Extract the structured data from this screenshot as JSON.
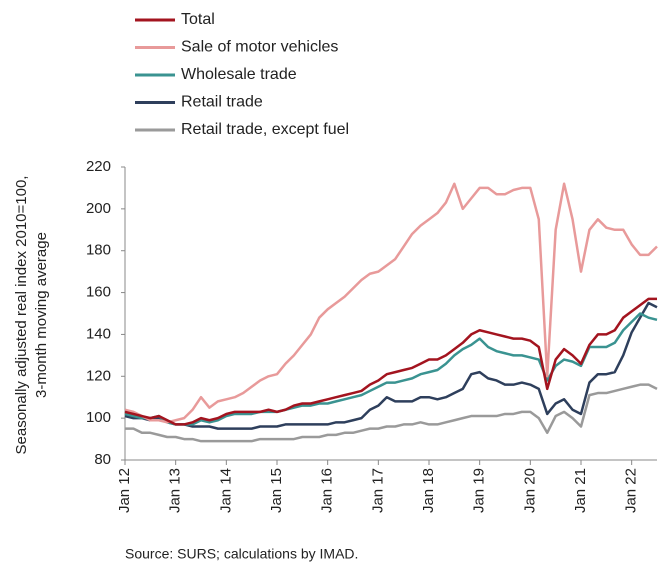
{
  "chart_data": {
    "type": "line",
    "y_label": [
      "Seasonally adjusted real index 2010=100,",
      "3-month moving average"
    ],
    "source": "Source: SURS; calculations by IMAD.",
    "categories": [
      "Jan 12",
      null,
      null,
      null,
      null,
      null,
      "Jan 13",
      null,
      null,
      null,
      null,
      null,
      "Jan 14",
      null,
      null,
      null,
      null,
      null,
      "Jan 15",
      null,
      null,
      null,
      null,
      null,
      "Jan 16",
      null,
      null,
      null,
      null,
      null,
      "Jan 17",
      null,
      null,
      null,
      null,
      null,
      "Jan 18",
      null,
      null,
      null,
      null,
      null,
      "Jan 19",
      null,
      null,
      null,
      null,
      null,
      "Jan 20",
      null,
      null,
      null,
      null,
      null,
      "Jan 21",
      null,
      null,
      null,
      null,
      null,
      "Jan 22",
      null,
      null,
      null
    ],
    "series": [
      {
        "name": "Total",
        "color": "#a3141f",
        "values": [
          103,
          102,
          101,
          100,
          101,
          99,
          97,
          97,
          98,
          100,
          99,
          100,
          102,
          103,
          103,
          103,
          103,
          104,
          103,
          104,
          106,
          107,
          107,
          108,
          109,
          110,
          111,
          112,
          113,
          116,
          118,
          121,
          122,
          123,
          124,
          126,
          128,
          128,
          130,
          133,
          136,
          140,
          142,
          141,
          140,
          139,
          138,
          138,
          137,
          134,
          114,
          128,
          133,
          130,
          126,
          135,
          140,
          140,
          142,
          148,
          151,
          154,
          157,
          157
        ]
      },
      {
        "name": "Sale of motor vehicles",
        "color": "#e89a9a",
        "values": [
          104,
          103,
          101,
          99,
          99,
          98,
          99,
          100,
          104,
          110,
          105,
          108,
          109,
          110,
          112,
          115,
          118,
          120,
          121,
          126,
          130,
          135,
          140,
          148,
          152,
          155,
          158,
          162,
          166,
          169,
          170,
          173,
          176,
          182,
          188,
          192,
          195,
          198,
          203,
          212,
          200,
          205,
          210,
          210,
          207,
          207,
          209,
          210,
          210,
          195,
          120,
          190,
          212,
          195,
          170,
          190,
          195,
          191,
          190,
          190,
          183,
          178,
          178,
          182
        ]
      },
      {
        "name": "Wholesale trade",
        "color": "#3a9391",
        "values": [
          102,
          101,
          100,
          100,
          101,
          98,
          97,
          97,
          97,
          99,
          98,
          99,
          101,
          102,
          102,
          102,
          103,
          103,
          103,
          104,
          105,
          106,
          106,
          107,
          107,
          108,
          109,
          110,
          111,
          113,
          115,
          117,
          117,
          118,
          119,
          121,
          122,
          123,
          126,
          130,
          133,
          135,
          138,
          134,
          132,
          131,
          130,
          130,
          129,
          128,
          118,
          125,
          128,
          127,
          125,
          134,
          134,
          134,
          136,
          142,
          146,
          150,
          148,
          147
        ]
      },
      {
        "name": "Retail trade",
        "color": "#2e3f5c",
        "values": [
          101,
          100,
          100,
          99,
          100,
          98,
          97,
          97,
          96,
          96,
          96,
          95,
          95,
          95,
          95,
          95,
          96,
          96,
          96,
          97,
          97,
          97,
          97,
          97,
          97,
          98,
          98,
          99,
          100,
          104,
          106,
          110,
          108,
          108,
          108,
          110,
          110,
          109,
          110,
          112,
          114,
          121,
          122,
          119,
          118,
          116,
          116,
          117,
          116,
          114,
          102,
          107,
          109,
          104,
          102,
          117,
          121,
          121,
          122,
          130,
          141,
          148,
          155,
          153
        ]
      },
      {
        "name": "Retail trade, except fuel",
        "color": "#9a9a9a",
        "values": [
          95,
          95,
          93,
          93,
          92,
          91,
          91,
          90,
          90,
          89,
          89,
          89,
          89,
          89,
          89,
          89,
          90,
          90,
          90,
          90,
          90,
          91,
          91,
          91,
          92,
          92,
          93,
          93,
          94,
          95,
          95,
          96,
          96,
          97,
          97,
          98,
          97,
          97,
          98,
          99,
          100,
          101,
          101,
          101,
          101,
          102,
          102,
          103,
          103,
          100,
          93,
          101,
          103,
          100,
          96,
          111,
          112,
          112,
          113,
          114,
          115,
          116,
          116,
          114
        ]
      }
    ],
    "ylim": [
      80,
      220
    ],
    "yticks": [
      80,
      100,
      120,
      140,
      160,
      180,
      200,
      220
    ],
    "legend": "top-left"
  }
}
